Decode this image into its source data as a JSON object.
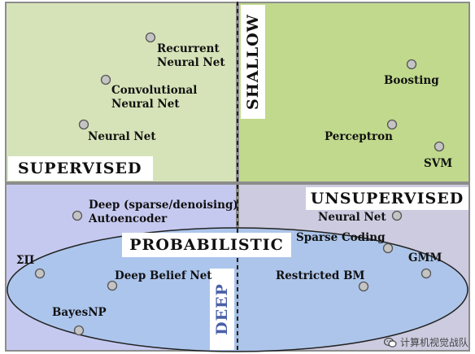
{
  "labels": {
    "rnn": "Recurrent\nNeural Net",
    "cnn": "Convolutional\nNeural Net",
    "nn": "Neural Net",
    "boosting": "Boosting",
    "perceptron": "Perceptron",
    "svm": "SVM",
    "deep_ae": "Deep (sparse/denoising)\nAutoencoder",
    "sigma_pi": "ΣΠ",
    "dbn": "Deep Belief Net",
    "bayesnp": "BayesNP",
    "nn_unsup": "Neural Net",
    "sparse_coding": "Sparse Coding",
    "gmm": "GMM",
    "rbm": "Restricted BM"
  },
  "tags": {
    "supervised": "SUPERVISED",
    "unsupervised": "UNSUPERVISED",
    "probabilistic": "PROBABILISTIC",
    "shallow": "SHALLOW",
    "deep": "DEEP"
  },
  "colors": {
    "top_left": "#d6e3b8",
    "top_right": "#c0d98c",
    "bottom_left": "#c6c9ef",
    "bottom_right": "#cdcbdf",
    "ellipse_fill": "#a7c4ec",
    "ellipse_fill_opacity": 0.85,
    "point_fill": "#c4c4c4",
    "point_stroke": "#555555"
  },
  "watermark": {
    "icon": "wechat-icon",
    "text": "计算机视觉战队"
  }
}
